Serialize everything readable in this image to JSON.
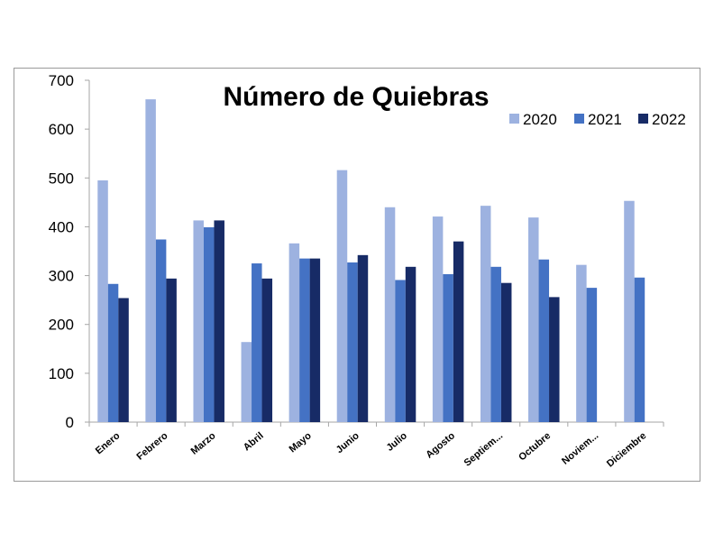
{
  "chart_data": {
    "type": "bar",
    "title": "Número de Quiebras",
    "xlabel": "",
    "ylabel": "",
    "ylim": [
      0,
      700
    ],
    "yticks": [
      0,
      100,
      200,
      300,
      400,
      500,
      600,
      700
    ],
    "categories": [
      "Enero",
      "Febrero",
      "Marzo",
      "Abril",
      "Mayo",
      "Junio",
      "Julio",
      "Agosto",
      "Septiem...",
      "Octubre",
      "Noviem...",
      "Diciembre"
    ],
    "series": [
      {
        "name": "2020",
        "color": "#9DB2E0",
        "values": [
          495,
          661,
          413,
          164,
          366,
          516,
          440,
          421,
          443,
          419,
          322,
          453
        ]
      },
      {
        "name": "2021",
        "color": "#4472C4",
        "values": [
          283,
          374,
          399,
          325,
          335,
          327,
          291,
          303,
          318,
          333,
          275,
          296
        ]
      },
      {
        "name": "2022",
        "color": "#172B66",
        "values": [
          254,
          294,
          413,
          294,
          335,
          342,
          318,
          370,
          285,
          256,
          null,
          null
        ]
      }
    ],
    "legend_position": "top-right",
    "grid": false
  }
}
